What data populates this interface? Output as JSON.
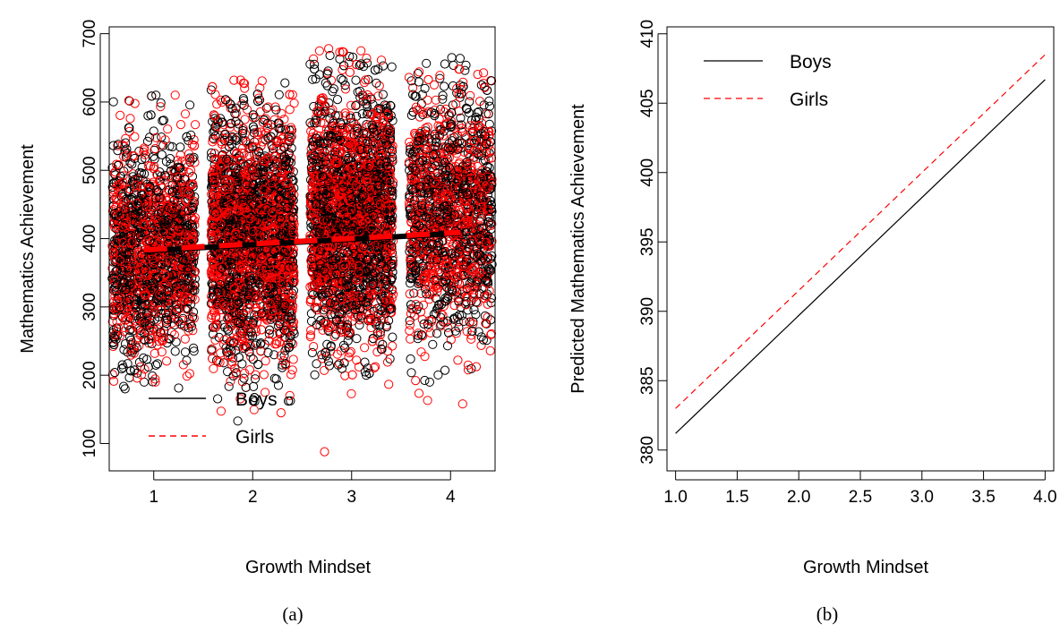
{
  "chart_data": [
    {
      "id": "a",
      "type": "scatter",
      "caption": "(a)",
      "xlabel": "Growth Mindset",
      "ylabel": "Mathematics Achievement",
      "xlim": [
        0.55,
        4.45
      ],
      "ylim": [
        60,
        710
      ],
      "x_ticks": [
        1,
        2,
        3,
        4
      ],
      "y_ticks": [
        100,
        200,
        300,
        400,
        500,
        600,
        700
      ],
      "jitter_halfwidth": 0.42,
      "legend": {
        "position": "bottom-left",
        "entries": [
          {
            "name": "Boys",
            "color": "#000000",
            "dash": "solid"
          },
          {
            "name": "Girls",
            "color": "#ff0000",
            "dash": "dashed"
          }
        ]
      },
      "series": [
        {
          "name": "Boys",
          "color": "#000000",
          "groups": [
            {
              "x": 1,
              "count": 900,
              "mean": 385,
              "sd": 75,
              "min": 180,
              "max": 610
            },
            {
              "x": 2,
              "count": 1300,
              "mean": 400,
              "sd": 85,
              "min": 133,
              "max": 628
            },
            {
              "x": 3,
              "count": 1400,
              "mean": 430,
              "sd": 88,
              "min": 200,
              "max": 668
            },
            {
              "x": 4,
              "count": 800,
              "mean": 435,
              "sd": 85,
              "min": 190,
              "max": 665
            }
          ],
          "fit": [
            [
              0.9,
              382
            ],
            [
              4.1,
              408
            ]
          ]
        },
        {
          "name": "Girls",
          "color": "#ff0000",
          "groups": [
            {
              "x": 1,
              "count": 800,
              "mean": 385,
              "sd": 78,
              "min": 190,
              "max": 610
            },
            {
              "x": 2,
              "count": 1300,
              "mean": 400,
              "sd": 85,
              "min": 145,
              "max": 632
            },
            {
              "x": 3,
              "count": 1300,
              "mean": 430,
              "sd": 90,
              "min": 88,
              "max": 678
            },
            {
              "x": 4,
              "count": 750,
              "mean": 435,
              "sd": 88,
              "min": 158,
              "max": 648
            }
          ],
          "fit": [
            [
              0.9,
              383.5
            ],
            [
              4.1,
              409
            ]
          ]
        }
      ]
    },
    {
      "id": "b",
      "type": "line",
      "caption": "(b)",
      "xlabel": "Growth Mindset",
      "ylabel": "Predicted Mathematics Achievement",
      "xlim": [
        0.93,
        4.07
      ],
      "ylim": [
        378.5,
        410.5
      ],
      "x_ticks": [
        1.0,
        1.5,
        2.0,
        2.5,
        3.0,
        3.5,
        4.0
      ],
      "y_ticks": [
        380,
        385,
        390,
        395,
        400,
        405,
        410
      ],
      "legend": {
        "position": "top-left",
        "entries": [
          {
            "name": "Boys",
            "color": "#000000",
            "dash": "solid"
          },
          {
            "name": "Girls",
            "color": "#ff0000",
            "dash": "dashed"
          }
        ]
      },
      "series": [
        {
          "name": "Boys",
          "color": "#000000",
          "dash": "solid",
          "x": [
            1.0,
            4.0
          ],
          "y": [
            381.2,
            406.7
          ]
        },
        {
          "name": "Girls",
          "color": "#ff0000",
          "dash": "dashed",
          "x": [
            1.0,
            4.0
          ],
          "y": [
            383.0,
            408.5
          ]
        }
      ]
    }
  ]
}
